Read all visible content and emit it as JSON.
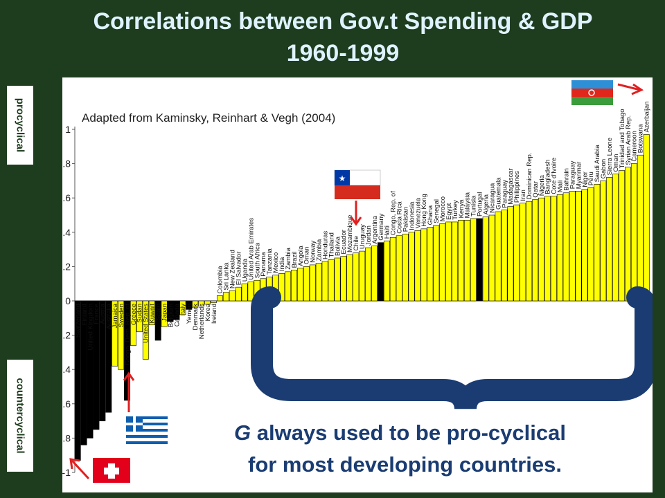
{
  "title_line1": "Correlations between Gov.t Spending & GDP",
  "title_line2": "1960-1999",
  "side_labels": {
    "procyclical": "procyclical",
    "countercyclical": "countercyclical"
  },
  "note": {
    "line1_emph": "G",
    "line1_rest": " always used to be pro-cyclical",
    "line2": "for most developing countries."
  },
  "colors": {
    "background": "#1e3c1e",
    "title": "#dff3ff",
    "highlight": "#1a3c72",
    "bar_yellow": "#ffff00",
    "bar_black": "#000000",
    "arrow": "#e02020"
  },
  "flags": [
    "azerbaijan-flag",
    "chile-flag",
    "greece-flag",
    "switzerland-flag"
  ],
  "chart_data": {
    "type": "bar",
    "source": "Adapted from Kaminsky, Reinhart & Vegh (2004)",
    "ylim": [
      -1,
      1
    ],
    "yticks": [
      "1",
      "0.8",
      "0.6",
      "0.4",
      "0.2",
      "0",
      "-0.2",
      "-0.4",
      "-0.6",
      "-0.8",
      "-1"
    ],
    "categories": [
      "Switzerland",
      "Finland",
      "United Kingdom",
      "France",
      "Austria",
      "Australia",
      "Jamaica",
      "Sweden",
      "Congo, Dem. Rep. of",
      "Greece",
      "Sudan",
      "United States",
      "Kuwait",
      "Spain",
      "Japan",
      "Belgium",
      "Canada",
      "Italy",
      "Yemen",
      "Denmark",
      "Netherlands",
      "Korea",
      "Ireland",
      "Colombia",
      "Sri Lanka",
      "New Zealand",
      "El Salvador",
      "Uganda",
      "United Arab Emirates",
      "South Africa",
      "Panama",
      "Tanzania",
      "Mexico",
      "India",
      "Zambia",
      "Brazil",
      "Angola",
      "Oman",
      "Norway",
      "Zambia",
      "Honduras",
      "Thailand",
      "Bolivia",
      "Ecuador",
      "Mozambique",
      "Chile",
      "Uruguay",
      "Jordan",
      "Argentina",
      "Germany",
      "Haiti",
      "Congo, Rep. of",
      "Costa Rica",
      "Pakistan",
      "Indonesia",
      "Venezuela",
      "Hong Kong",
      "Ghana",
      "Senegal",
      "Morocco",
      "Egypt",
      "Turkey",
      "Kenya",
      "Malaysia",
      "Tunisia",
      "Portugal",
      "Algeria",
      "Nicaragua",
      "Guatemala",
      "Paraguay",
      "Madagascar",
      "Philippines",
      "Iran",
      "Dominican Rep.",
      "Qatar",
      "Nigeria",
      "Bangladesh",
      "Cote d'Ivoire",
      "Mali",
      "Bahrain",
      "Paraguay",
      "Myanmar",
      "Niger",
      "Peru",
      "Saudi Arabia",
      "Gabon",
      "Sierra Leone",
      "Oman",
      "Trinidad and Tobago",
      "Syrian Arab Rep.",
      "Cameroon",
      "Botswana",
      "Azerbaijan"
    ],
    "values": [
      -0.93,
      -0.84,
      -0.8,
      -0.75,
      -0.7,
      -0.65,
      -0.38,
      -0.4,
      -0.58,
      -0.26,
      -0.18,
      -0.34,
      -0.14,
      -0.23,
      -0.15,
      -0.12,
      -0.11,
      -0.08,
      -0.05,
      -0.04,
      -0.03,
      -0.02,
      -0.01,
      0.03,
      0.05,
      0.06,
      0.08,
      0.1,
      0.11,
      0.12,
      0.13,
      0.14,
      0.15,
      0.16,
      0.17,
      0.18,
      0.19,
      0.2,
      0.21,
      0.22,
      0.23,
      0.24,
      0.25,
      0.26,
      0.27,
      0.28,
      0.29,
      0.31,
      0.32,
      0.34,
      0.35,
      0.37,
      0.38,
      0.39,
      0.4,
      0.41,
      0.42,
      0.43,
      0.44,
      0.45,
      0.46,
      0.46,
      0.47,
      0.47,
      0.48,
      0.48,
      0.49,
      0.5,
      0.52,
      0.53,
      0.55,
      0.56,
      0.57,
      0.58,
      0.59,
      0.6,
      0.61,
      0.61,
      0.62,
      0.63,
      0.64,
      0.64,
      0.65,
      0.66,
      0.68,
      0.7,
      0.72,
      0.74,
      0.76,
      0.78,
      0.8,
      0.85,
      0.97
    ],
    "highlight_black": [
      0,
      1,
      2,
      3,
      4,
      5,
      8,
      13,
      15,
      16,
      18,
      49,
      65
    ]
  }
}
